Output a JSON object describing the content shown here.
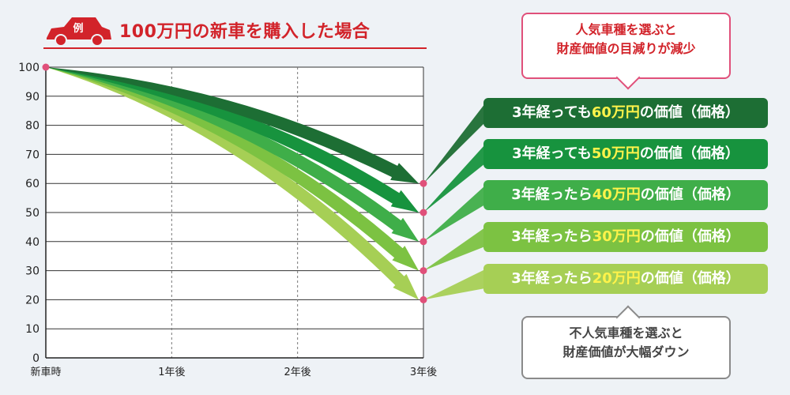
{
  "header": {
    "badge": "例",
    "title": "100万円の新車を購入した場合"
  },
  "callouts": {
    "top": [
      "人気車種を選ぶと",
      "財産価値の目減りが減少"
    ],
    "bottom": [
      "不人気車種を選ぶと",
      "財産価値が大幅ダウン"
    ]
  },
  "labels": [
    {
      "pre": "3年経っても",
      "value": "60万円",
      "post": "の価値（価格）",
      "color": "#1d6e34"
    },
    {
      "pre": "3年経っても",
      "value": "50万円",
      "post": "の価値（価格）",
      "color": "#17933e"
    },
    {
      "pre": "3年経ったら",
      "value": "40万円",
      "post": "の価値（価格）",
      "color": "#3fae49"
    },
    {
      "pre": "3年経ったら",
      "value": "30万円",
      "post": "の価値（価格）",
      "color": "#7cc242"
    },
    {
      "pre": "3年経ったら",
      "value": "20万円",
      "post": "の価値（価格）",
      "color": "#a6cf55"
    }
  ],
  "chart_data": {
    "type": "line",
    "x": [
      "新車時",
      "1年後",
      "2年後",
      "3年後"
    ],
    "ylim": [
      0,
      100
    ],
    "yticks": [
      0,
      10,
      20,
      30,
      40,
      50,
      60,
      70,
      80,
      90,
      100
    ],
    "start": 100,
    "end_values": [
      60,
      50,
      40,
      30,
      20
    ],
    "colors": [
      "#1d6e34",
      "#17933e",
      "#3fae49",
      "#7cc242",
      "#a6cf55"
    ],
    "grid": true,
    "marker_color": "#e0507a"
  }
}
